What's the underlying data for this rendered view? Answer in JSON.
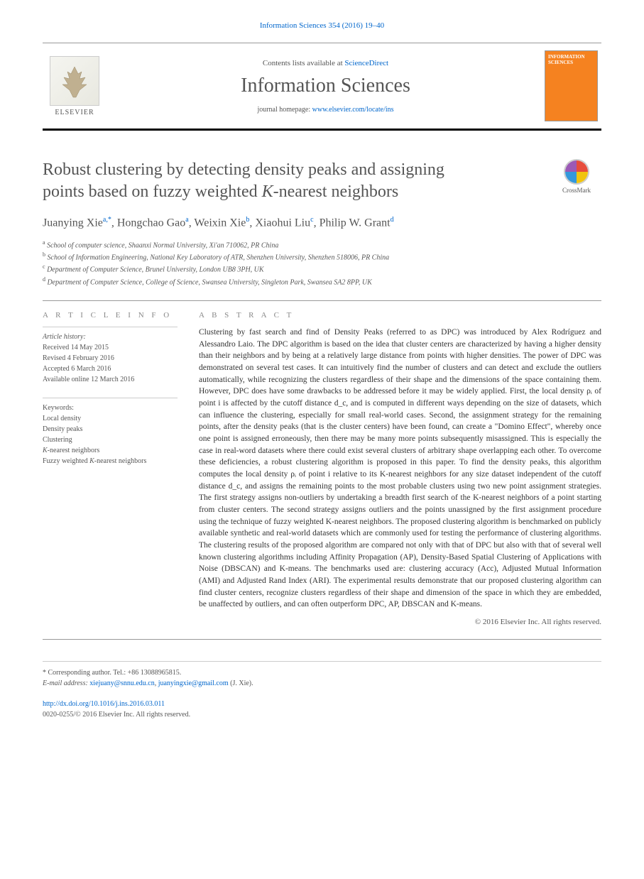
{
  "header": {
    "citation": "Information Sciences 354 (2016) 19–40"
  },
  "banner": {
    "contents_prefix": "Contents lists available at ",
    "contents_link": "ScienceDirect",
    "journal_name": "Information Sciences",
    "homepage_prefix": "journal homepage: ",
    "homepage_url": "www.elsevier.com/locate/ins",
    "publisher_label": "ELSEVIER",
    "cover_title": "INFORMATION SCIENCES"
  },
  "crossmark_label": "CrossMark",
  "title": {
    "line1": "Robust clustering by detecting density peaks and assigning",
    "line2_pre": "points based on fuzzy weighted ",
    "line2_italic": "K",
    "line2_post": "-nearest neighbors"
  },
  "authors": [
    {
      "name": "Juanying Xie",
      "sup": "a,*"
    },
    {
      "name": "Hongchao Gao",
      "sup": "a"
    },
    {
      "name": "Weixin Xie",
      "sup": "b"
    },
    {
      "name": "Xiaohui Liu",
      "sup": "c"
    },
    {
      "name": "Philip W. Grant",
      "sup": "d"
    }
  ],
  "affiliations": [
    {
      "sup": "a",
      "text": "School of computer science, Shaanxi Normal University, Xi'an 710062, PR China"
    },
    {
      "sup": "b",
      "text": "School of Information Engineering, National Key Laboratory of ATR, Shenzhen University, Shenzhen 518006, PR China"
    },
    {
      "sup": "c",
      "text": "Department of Computer Science, Brunel University, London UB8 3PH, UK"
    },
    {
      "sup": "d",
      "text": "Department of Computer Science, College of Science, Swansea University, Singleton Park, Swansea SA2 8PP, UK"
    }
  ],
  "article_info": {
    "heading": "A R T I C L E   I N F O",
    "history_label": "Article history:",
    "received": "Received 14 May 2015",
    "revised": "Revised 4 February 2016",
    "accepted": "Accepted 6 March 2016",
    "online": "Available online 12 March 2016",
    "keywords_label": "Keywords:",
    "keywords": [
      "Local density",
      "Density peaks",
      "Clustering",
      "K-nearest neighbors",
      "Fuzzy weighted K-nearest neighbors"
    ]
  },
  "abstract": {
    "heading": "A B S T R A C T",
    "text": "Clustering by fast search and find of Density Peaks (referred to as DPC) was introduced by Alex Rodríguez and Alessandro Laio. The DPC algorithm is based on the idea that cluster centers are characterized by having a higher density than their neighbors and by being at a relatively large distance from points with higher densities. The power of DPC was demonstrated on several test cases. It can intuitively find the number of clusters and can detect and exclude the outliers automatically, while recognizing the clusters regardless of their shape and the dimensions of the space containing them. However, DPC does have some drawbacks to be addressed before it may be widely applied. First, the local density ρᵢ of point i is affected by the cutoff distance d_c, and is computed in different ways depending on the size of datasets, which can influence the clustering, especially for small real-world cases. Second, the assignment strategy for the remaining points, after the density peaks (that is the cluster centers) have been found, can create a \"Domino Effect\", whereby once one point is assigned erroneously, then there may be many more points subsequently misassigned. This is especially the case in real-word datasets where there could exist several clusters of arbitrary shape overlapping each other. To overcome these deficiencies, a robust clustering algorithm is proposed in this paper. To find the density peaks, this algorithm computes the local density ρᵢ of point i relative to its K-nearest neighbors for any size dataset independent of the cutoff distance d_c, and assigns the remaining points to the most probable clusters using two new point assignment strategies. The first strategy assigns non-outliers by undertaking a breadth first search of the K-nearest neighbors of a point starting from cluster centers. The second strategy assigns outliers and the points unassigned by the first assignment procedure using the technique of fuzzy weighted K-nearest neighbors. The proposed clustering algorithm is benchmarked on publicly available synthetic and real-world datasets which are commonly used for testing the performance of clustering algorithms. The clustering results of the proposed algorithm are compared not only with that of DPC but also with that of several well known clustering algorithms including Affinity Propagation (AP), Density-Based Spatial Clustering of Applications with Noise (DBSCAN) and K-means. The benchmarks used are: clustering accuracy (Acc), Adjusted Mutual Information (AMI) and Adjusted Rand Index (ARI). The experimental results demonstrate that our proposed clustering algorithm can find cluster centers, recognize clusters regardless of their shape and dimension of the space in which they are embedded, be unaffected by outliers, and can often outperform DPC, AP, DBSCAN and K-means.",
    "copyright": "© 2016 Elsevier Inc. All rights reserved."
  },
  "footer": {
    "corr_label": "* Corresponding author. Tel.: +86 13088965815.",
    "email_label": "E-mail address: ",
    "email1": "xiejuany@snnu.edu.cn",
    "email_sep": ", ",
    "email2": "juanyingxie@gmail.com",
    "email_person": " (J. Xie).",
    "doi": "http://dx.doi.org/10.1016/j.ins.2016.03.011",
    "issn_line": "0020-0255/© 2016 Elsevier Inc. All rights reserved."
  },
  "colors": {
    "link": "#0066cc",
    "text": "#333333",
    "muted": "#555555",
    "cover_bg": "#f58220"
  }
}
